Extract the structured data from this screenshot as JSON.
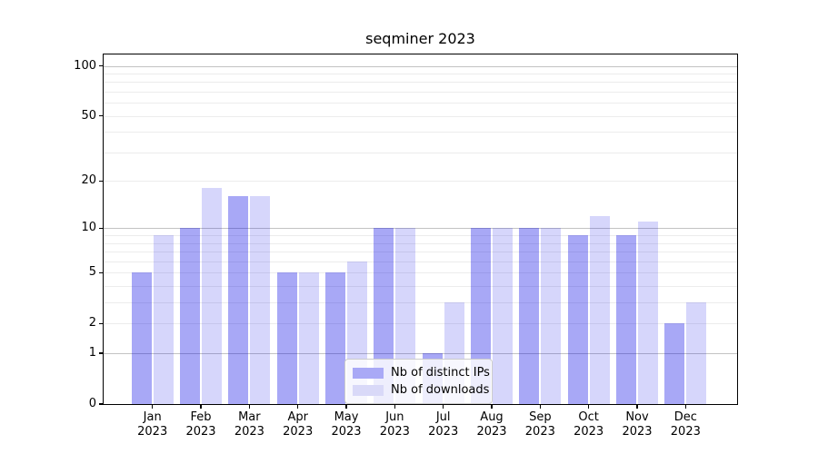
{
  "chart_data": {
    "type": "bar",
    "title": "seqminer 2023",
    "categories": [
      "Jan",
      "Feb",
      "Mar",
      "Apr",
      "May",
      "Jun",
      "Jul",
      "Aug",
      "Sep",
      "Oct",
      "Nov",
      "Dec"
    ],
    "category_year": "2023",
    "series": [
      {
        "name": "Nb of distinct IPs",
        "values": [
          5,
          10,
          16,
          5,
          5,
          10,
          1,
          10,
          10,
          9,
          9,
          2
        ],
        "fill": "rgba(0,0,230,0.34)",
        "swatch": "#a9a9f6"
      },
      {
        "name": "Nb of downloads",
        "values": [
          9,
          18,
          16,
          5,
          6,
          10,
          3,
          10,
          10,
          12,
          11,
          3
        ],
        "fill": "rgba(0,0,230,0.16)",
        "swatch": "#d9d9f8"
      }
    ],
    "xlabel": "",
    "ylabel": "",
    "y_axis": {
      "scale": "log1p",
      "ylim": [
        0,
        116
      ],
      "tick_values": [
        0,
        1,
        2,
        5,
        10,
        20,
        50,
        100
      ],
      "major_gridlines": [
        1,
        10,
        100
      ],
      "minor_gridlines": [
        2,
        3,
        4,
        5,
        6,
        7,
        8,
        9,
        20,
        30,
        40,
        50,
        60,
        70,
        80,
        90
      ],
      "major_grid_color": "#c3c3c3",
      "minor_grid_color": "#ececec"
    },
    "legend": {
      "position": "lower center",
      "entries": [
        "Nb of distinct IPs",
        "Nb of downloads"
      ]
    },
    "grid": true
  }
}
